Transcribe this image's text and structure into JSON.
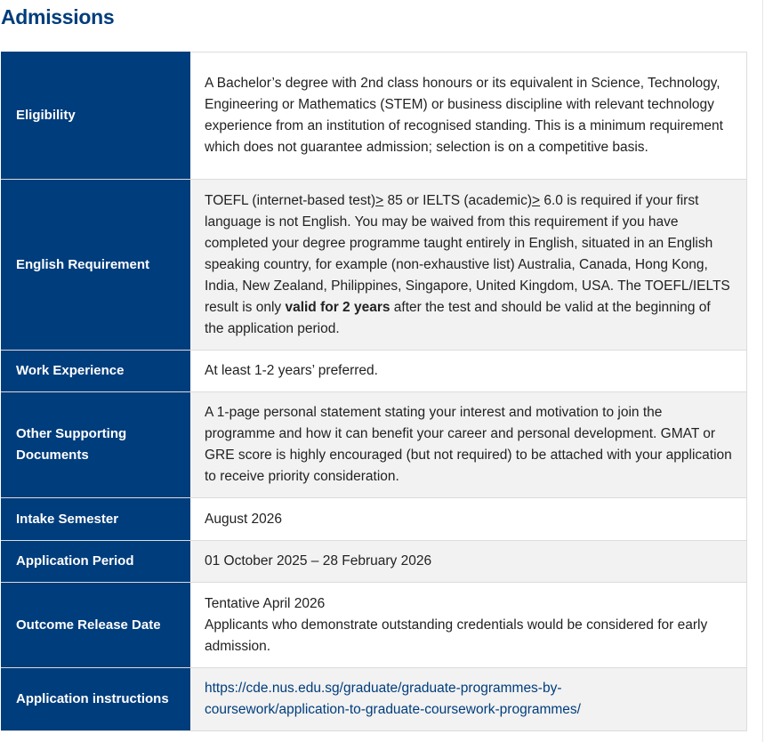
{
  "title": "Admissions",
  "rows": [
    {
      "label": "Eligibility",
      "text": "A Bachelor’s degree with 2nd class honours or its equivalent in Science, Technology, Engineering or Mathematics (STEM) or business discipline with relevant technology experience from an institution of recognised standing.   This is a minimum requirement which does not guarantee admission; selection is on a competitive basis."
    },
    {
      "label": "English Requirement",
      "t1": "TOEFL (internet-based test)",
      "ge": ">",
      "t2": " 85 or IELTS (academic)",
      "t3": " 6.0 is required if your first language is not English. You may be waived from this requirement if you have completed your degree programme taught entirely in English, situated in an English speaking country, for example (non-exhaustive list) Australia, Canada, Hong Kong, India, New Zealand, Philippines, Singapore, United Kingdom, USA.   The TOEFL/IELTS result is only ",
      "bold": "valid for 2 years",
      "t4": " after the test and should be valid at the beginning of the application period."
    },
    {
      "label": "Work Experience",
      "text": "At least 1-2 years’ preferred."
    },
    {
      "label": "Other Supporting Documents",
      "text": "A 1-page personal statement stating your interest and motivation to join the programme and how it can benefit your career and personal development. GMAT or GRE score is highly encouraged (but not required) to be attached with your application to receive priority consideration."
    },
    {
      "label": "Intake Semester",
      "text": "August 2026"
    },
    {
      "label": "Application Period",
      "text": "01 October 2025 – 28 February 2026"
    },
    {
      "label": "Outcome Release Date",
      "line1": "Tentative April 2026",
      "line2": "Applicants who demonstrate outstanding credentials would be considered for early admission."
    },
    {
      "label": "Application instructions",
      "link": "https://cde.nus.edu.sg/graduate/graduate-programmes-by-coursework/application-to-graduate-coursework-programmes/"
    }
  ]
}
